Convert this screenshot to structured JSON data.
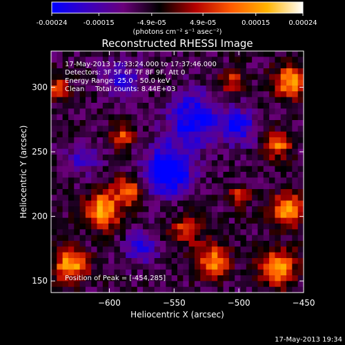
{
  "colorbar": {
    "tick_labels": [
      "-0.00024",
      "-0.00015",
      "-4.9e-05",
      "4.9e-05",
      "0.00015",
      "0.00024"
    ],
    "tick_values": [
      -0.00024,
      -0.00015,
      -4.9e-05,
      4.9e-05,
      0.00015,
      0.00024
    ],
    "range": [
      -0.00024,
      0.00024
    ],
    "units_label": "(photons cm⁻² s⁻¹ asec⁻²)",
    "gradient_colors": [
      "#0000ff",
      "#3a00c0",
      "#6a007a",
      "#000000",
      "#b40000",
      "#ff5a00",
      "#ffb400",
      "#ffffff"
    ]
  },
  "chart_data": {
    "type": "heatmap",
    "title": "Reconstructed RHESSI Image",
    "xlabel": "Heliocentric X (arcsec)",
    "ylabel": "Heliocentric Y (arcsec)",
    "xlim": [
      -645,
      -450
    ],
    "ylim": [
      141,
      328
    ],
    "x_ticks": [
      -600,
      -550,
      -500,
      -450
    ],
    "y_ticks": [
      150,
      200,
      250,
      300
    ],
    "x_tick_labels": [
      "−600",
      "−550",
      "−500",
      "−450"
    ],
    "y_tick_labels": [
      "150",
      "200",
      "250",
      "300"
    ],
    "grid_cols": 44,
    "grid_rows": 42,
    "seed": 17,
    "hot_spots": [
      {
        "x": -630,
        "y": 162,
        "r": 12,
        "v": 1.0
      },
      {
        "x": -605,
        "y": 205,
        "r": 14,
        "v": 0.95
      },
      {
        "x": -585,
        "y": 220,
        "r": 10,
        "v": 0.8
      },
      {
        "x": -590,
        "y": 262,
        "r": 9,
        "v": 0.6
      },
      {
        "x": -540,
        "y": 190,
        "r": 12,
        "v": 0.6
      },
      {
        "x": -520,
        "y": 165,
        "r": 12,
        "v": 0.85
      },
      {
        "x": -470,
        "y": 160,
        "r": 14,
        "v": 0.9
      },
      {
        "x": -462,
        "y": 205,
        "r": 12,
        "v": 0.95
      },
      {
        "x": -470,
        "y": 255,
        "r": 10,
        "v": 0.75
      },
      {
        "x": -460,
        "y": 305,
        "r": 12,
        "v": 1.0
      },
      {
        "x": -505,
        "y": 305,
        "r": 9,
        "v": 0.6
      },
      {
        "x": -640,
        "y": 300,
        "r": 9,
        "v": 0.55
      },
      {
        "x": -500,
        "y": 215,
        "r": 8,
        "v": 0.55
      }
    ],
    "cold_spots": [
      {
        "x": -555,
        "y": 235,
        "r": 18,
        "v": -1.0
      },
      {
        "x": -535,
        "y": 275,
        "r": 20,
        "v": -0.75
      },
      {
        "x": -590,
        "y": 305,
        "r": 14,
        "v": -0.5
      },
      {
        "x": -575,
        "y": 175,
        "r": 12,
        "v": -0.55
      },
      {
        "x": -500,
        "y": 270,
        "r": 14,
        "v": -0.6
      },
      {
        "x": -620,
        "y": 245,
        "r": 12,
        "v": -0.45
      }
    ],
    "info_lines": [
      "17-May-2013 17:33:24.000 to 17:37:46.000",
      "Detectors: 3F 5F 6F 7F 8F 9F, Att 0",
      "Energy Range: 25.0 - 50.0 keV",
      "Clean     Total counts: 8.44E+03"
    ],
    "peak_label": "Position of Peak = [-454,285]"
  },
  "footer_timestamp": "17-May-2013 19:34"
}
